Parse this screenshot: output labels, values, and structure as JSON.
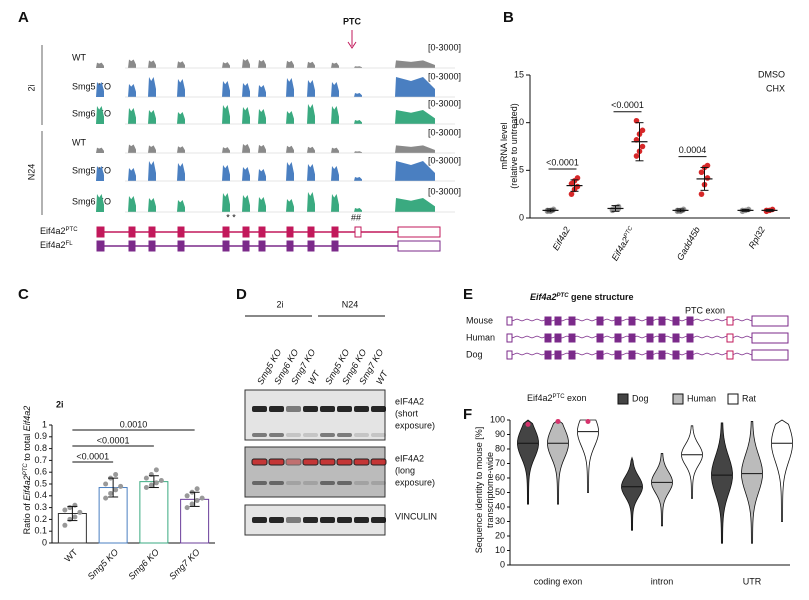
{
  "panels": {
    "A": {
      "label": "A",
      "ptc": "PTC",
      "groups": [
        "2i",
        "N24"
      ],
      "tracks": [
        "WT",
        "Smg5 KO",
        "Smg6 KO",
        "WT",
        "Smg5 KO",
        "Smg6 KO"
      ],
      "ranges": [
        "[0-3000]",
        "[0-3000]",
        "[0-3000]",
        "[0-3000]",
        "[0-3000]",
        "[0-3000]"
      ],
      "marks": [
        "* *",
        "##"
      ],
      "isoforms": [
        {
          "name": "Eif4a2",
          "sup": "PTC"
        },
        {
          "name": "Eif4a2",
          "sup": "FL"
        }
      ]
    },
    "B": {
      "label": "B"
    },
    "C": {
      "label": "C"
    },
    "D": {
      "label": "D",
      "groups": [
        "2i",
        "N24"
      ],
      "lanes": [
        "Smg5 KO",
        "Smg6 KO",
        "Smg7 KO",
        "WT",
        "Smg5 KO",
        "Smg6 KO",
        "Smg7 KO",
        "WT"
      ],
      "blots": [
        [
          "eIF4A2",
          "(short",
          "exposure)"
        ],
        [
          "eIF4A2",
          "(long",
          "exposure)"
        ],
        [
          "VINCULIN"
        ]
      ]
    },
    "E": {
      "label": "E",
      "title": {
        "name": "Eif4a2",
        "sup": "PTC",
        "rest": " gene structure"
      },
      "ptc_exon": "PTC exon",
      "species": [
        "Mouse",
        "Human",
        "Dog"
      ]
    },
    "F": {
      "label": "F"
    }
  },
  "chart_data": [
    {
      "type": "dot",
      "ylabel": [
        "mRNA level",
        "(relative to untreated)"
      ],
      "categories": [
        "Eif4a2",
        "Eif4a2",
        "Gadd45b",
        "Rpl32"
      ],
      "category_superscripts": {
        "1": "PTC"
      },
      "series": [
        {
          "name": "DMSO",
          "color": "#999999",
          "means": [
            0.8,
            1.0,
            0.8,
            0.8
          ],
          "sd": [
            0.15,
            0.3,
            0.15,
            0.1
          ],
          "points": [
            [
              0.7,
              0.8,
              0.9,
              0.8,
              0.7,
              0.9
            ],
            [
              0.8,
              1.0,
              1.2,
              0.9,
              1.1,
              1.0
            ],
            [
              0.7,
              0.8,
              0.9,
              0.8,
              0.7,
              0.9
            ],
            [
              0.7,
              0.8,
              0.9,
              0.8
            ]
          ]
        },
        {
          "name": "CHX",
          "color": "#d62728",
          "means": [
            3.4,
            8.0,
            4.1,
            0.8
          ],
          "sd": [
            0.6,
            2.0,
            1.2,
            0.1
          ],
          "points": [
            [
              2.5,
              3.0,
              3.3,
              3.6,
              3.9,
              4.2
            ],
            [
              6.5,
              7.0,
              7.5,
              8.2,
              8.8,
              9.2,
              10.2
            ],
            [
              2.5,
              3.5,
              4.2,
              4.8,
              5.3,
              5.5
            ],
            [
              0.7,
              0.8,
              0.9,
              0.8
            ]
          ]
        }
      ],
      "pvalues": [
        "<0.0001",
        "<0.0001",
        "0.0004"
      ],
      "ylim": [
        0,
        15
      ],
      "yticks": [
        0,
        5,
        10,
        15
      ]
    },
    {
      "type": "bar",
      "title": "2i",
      "ylabel": [
        "Ratio of ",
        "Eif4a2",
        "PTC",
        " to total ",
        "Eif4a2"
      ],
      "categories": [
        "WT",
        "Smg5 KO",
        "Smg6 KO",
        "Smg7 KO"
      ],
      "values": [
        0.25,
        0.47,
        0.52,
        0.37
      ],
      "errors": [
        0.06,
        0.08,
        0.05,
        0.06
      ],
      "colors": [
        "#333333",
        "#4a7fc1",
        "#3aaa80",
        "#6a3d9a"
      ],
      "points": [
        [
          0.15,
          0.2,
          0.22,
          0.26,
          0.28,
          0.3,
          0.32
        ],
        [
          0.38,
          0.42,
          0.45,
          0.48,
          0.5,
          0.55,
          0.58
        ],
        [
          0.47,
          0.49,
          0.51,
          0.53,
          0.55,
          0.58,
          0.62
        ],
        [
          0.3,
          0.33,
          0.36,
          0.38,
          0.4,
          0.43,
          0.46
        ]
      ],
      "comparisons": [
        {
          "pair": [
            0,
            1
          ],
          "label": "<0.0001"
        },
        {
          "pair": [
            0,
            2
          ],
          "label": "<0.0001"
        },
        {
          "pair": [
            0,
            3
          ],
          "label": "0.0010"
        }
      ],
      "ylim": [
        0,
        1
      ],
      "yticks": [
        0,
        0.1,
        0.2,
        0.3,
        0.4,
        0.5,
        0.6,
        0.7,
        0.8,
        0.9,
        1
      ]
    },
    {
      "type": "violin",
      "ylabel": [
        "Sequence identity to mouse [%]",
        "transcriptome-wide"
      ],
      "legend_title": [
        "Eif4a2",
        "PTC",
        " exon"
      ],
      "categories": [
        "coding exon",
        "intron",
        "UTR"
      ],
      "series": [
        {
          "name": "Dog",
          "color": "#444444",
          "medians": [
            84,
            54,
            62
          ]
        },
        {
          "name": "Human",
          "color": "#bbbbbb",
          "medians": [
            84,
            57,
            63
          ]
        },
        {
          "name": "Rat",
          "color": "#ffffff",
          "medians": [
            92,
            76,
            84
          ]
        }
      ],
      "ptc_exon_values": [
        97,
        99,
        99
      ],
      "ptc_color": "#d6336c",
      "ylim": [
        0,
        100
      ],
      "yticks": [
        0,
        10,
        20,
        30,
        40,
        50,
        60,
        70,
        80,
        90,
        100
      ]
    }
  ]
}
